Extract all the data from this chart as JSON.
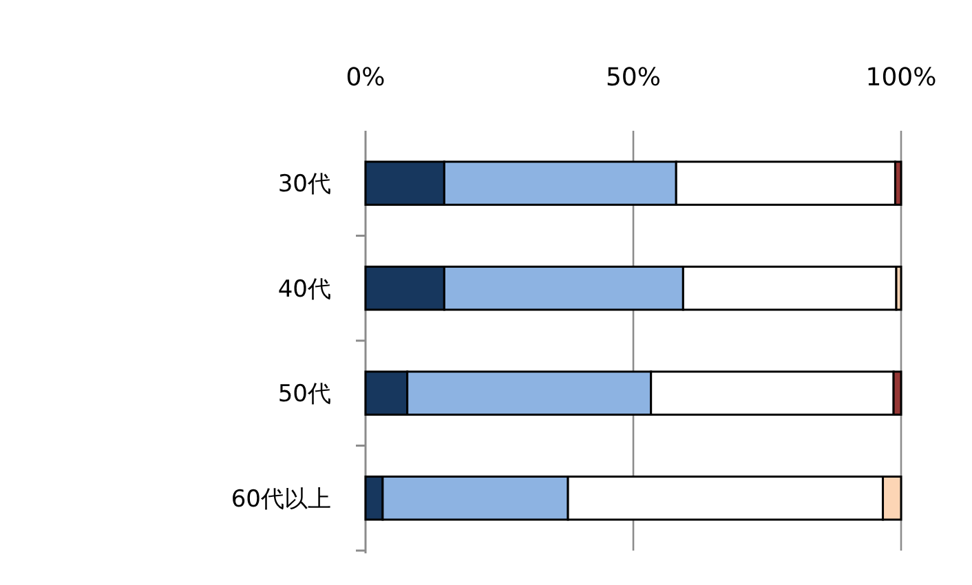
{
  "chart_data": {
    "type": "bar",
    "orientation": "horizontal",
    "stacked": true,
    "grid": "x",
    "categories": [
      "30代",
      "40代",
      "50代",
      "60代以上"
    ],
    "series": [
      {
        "color": "#17375e",
        "values": [
          14.7,
          14.7,
          7.8,
          3.2
        ]
      },
      {
        "color": "#8db3e2",
        "values": [
          43.3,
          44.6,
          45.5,
          34.6
        ]
      },
      {
        "color": "#ffffff",
        "values": [
          40.9,
          39.8,
          45.3,
          58.8
        ]
      },
      {
        "color": "#953735",
        "values": [
          1.1,
          0,
          1.4,
          0
        ]
      },
      {
        "color": "#fcd5b5",
        "values": [
          0,
          0.9,
          0,
          3.4
        ]
      }
    ],
    "xlim": [
      0,
      100
    ],
    "xticks": [
      {
        "value": 0,
        "label": "0%"
      },
      {
        "value": 50,
        "label": "50%"
      },
      {
        "value": 100,
        "label": "100%"
      }
    ]
  }
}
